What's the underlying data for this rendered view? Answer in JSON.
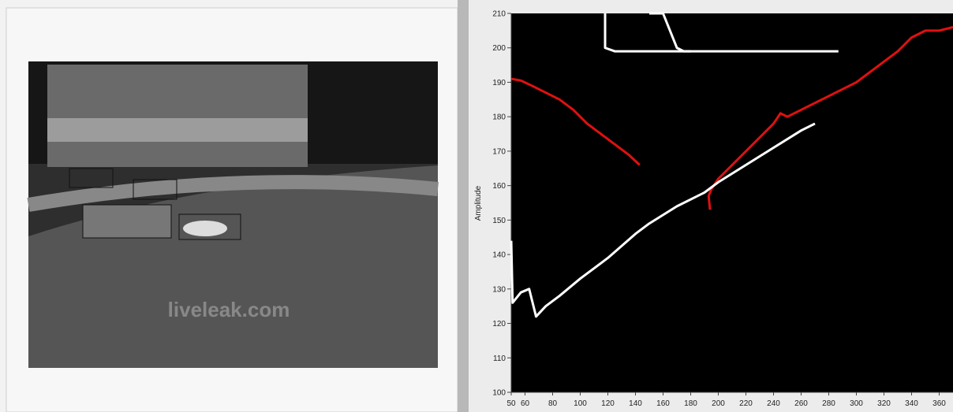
{
  "video": {
    "watermark": "liveleak.com"
  },
  "chart_data": {
    "type": "line",
    "y_label": "Amplitude",
    "xlim": [
      50,
      370
    ],
    "ylim": [
      100,
      210
    ],
    "xticks": [
      50,
      60,
      80,
      100,
      120,
      140,
      160,
      180,
      200,
      220,
      240,
      260,
      280,
      300,
      320,
      340,
      360
    ],
    "yticks": [
      100,
      110,
      120,
      130,
      140,
      150,
      160,
      170,
      180,
      190,
      200,
      210
    ],
    "background": "#000000",
    "series": [
      {
        "color": "#e01010",
        "x": [
          50,
          57,
          65,
          75,
          85,
          95,
          105,
          115,
          125,
          135,
          143
        ],
        "values": [
          191,
          190.5,
          189,
          187,
          185,
          182,
          178,
          175,
          172,
          169,
          166
        ]
      },
      {
        "color": "#e01010",
        "x": [
          194,
          193,
          195,
          200,
          210,
          220,
          230,
          240,
          245,
          250,
          260,
          270,
          280,
          290,
          300,
          310,
          320,
          330,
          340,
          350,
          360,
          370
        ],
        "values": [
          153,
          157,
          159,
          162,
          166,
          170,
          174,
          178,
          181,
          180,
          182,
          184,
          186,
          188,
          190,
          193,
          196,
          199,
          203,
          205,
          205,
          206
        ]
      },
      {
        "color": "#ffffff",
        "x": [
          50,
          51,
          57,
          63,
          68,
          75,
          85,
          100,
          120,
          140,
          150,
          170,
          190,
          200,
          220,
          240,
          260,
          270
        ],
        "values": [
          144,
          126,
          129,
          130,
          122,
          125,
          128,
          133,
          139,
          146,
          149,
          154,
          158,
          161,
          166,
          171,
          176,
          178
        ]
      },
      {
        "color": "#ffffff",
        "x": [
          118,
          118,
          125,
          150,
          200,
          250,
          287
        ],
        "values": [
          210,
          200,
          199,
          199,
          199,
          199,
          199
        ]
      },
      {
        "color": "#ffffff",
        "x": [
          150,
          160,
          170,
          175,
          180
        ],
        "values": [
          210,
          210,
          200,
          199,
          199
        ]
      }
    ]
  }
}
